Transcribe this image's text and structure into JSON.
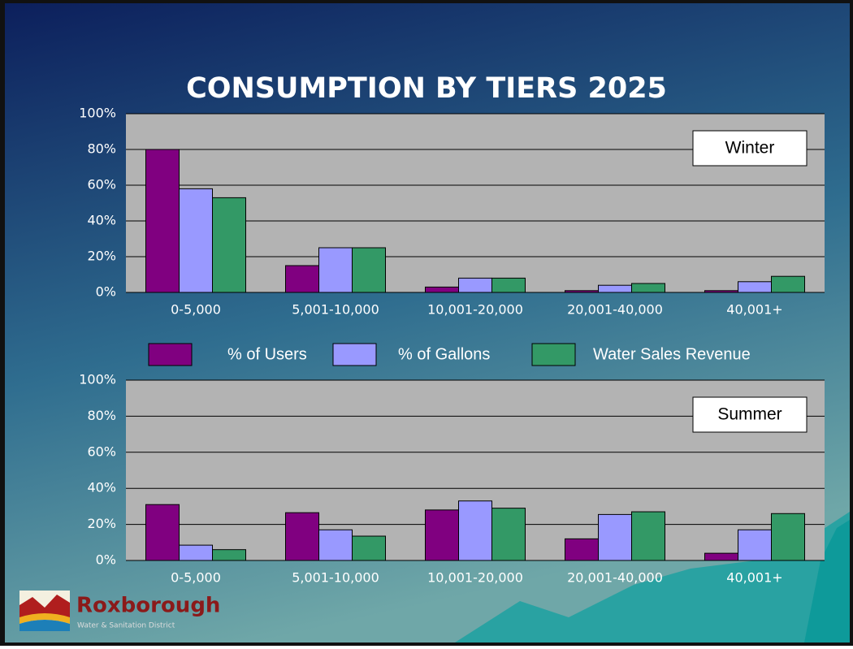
{
  "title": "CONSUMPTION BY TIERS 2025",
  "logo": {
    "name": "Roxborough",
    "tagline": "Water & Sanitation District"
  },
  "chart_data": [
    {
      "type": "bar",
      "annotation": "Winter",
      "categories": [
        "0-5,000",
        "5,001-10,000",
        "10,001-20,000",
        "20,001-40,000",
        "40,001+"
      ],
      "series": [
        {
          "name": "% of Users",
          "color": "#800080",
          "values": [
            80,
            15,
            3,
            1,
            1
          ]
        },
        {
          "name": "% of Gallons",
          "color": "#9999ff",
          "values": [
            58,
            25,
            8,
            4,
            6
          ]
        },
        {
          "name": "Water Sales Revenue",
          "color": "#339966",
          "values": [
            53,
            25,
            8,
            5,
            9
          ]
        }
      ],
      "ylim": [
        0,
        100
      ],
      "yticks": [
        {
          "value": 0,
          "label": "0%"
        },
        {
          "value": 20,
          "label": "20%"
        },
        {
          "value": 40,
          "label": "40%"
        },
        {
          "value": 60,
          "label": "60%"
        },
        {
          "value": 80,
          "label": "80%"
        },
        {
          "value": 100,
          "label": "100%"
        }
      ],
      "grid": true,
      "legend": "bottom"
    },
    {
      "type": "bar",
      "annotation": "Summer",
      "categories": [
        "0-5,000",
        "5,001-10,000",
        "10,001-20,000",
        "20,001-40,000",
        "40,001+"
      ],
      "series": [
        {
          "color": "#800080",
          "values": [
            31,
            26.5,
            28,
            12,
            4
          ]
        },
        {
          "color": "#9999ff",
          "values": [
            8.5,
            17,
            33,
            25.5,
            17
          ]
        },
        {
          "color": "#339966",
          "values": [
            6,
            13.5,
            29,
            27,
            26
          ]
        }
      ],
      "ylim": [
        0,
        100
      ],
      "yticks": [
        {
          "value": 0,
          "label": "0%"
        },
        {
          "value": 20,
          "label": "20%"
        },
        {
          "value": 40,
          "label": "40%"
        },
        {
          "value": 60,
          "label": "60%"
        },
        {
          "value": 80,
          "label": "80%"
        },
        {
          "value": 100,
          "label": "100%"
        }
      ],
      "grid": true
    }
  ]
}
